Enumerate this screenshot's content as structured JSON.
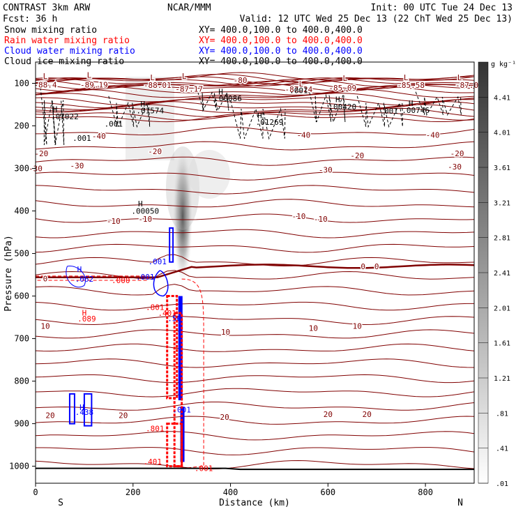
{
  "header": {
    "left_line1": "CONTRAST  3km ARW",
    "center_line1": "NCAR/MMM",
    "right_line1": "Init: 00 UTC Tue 24 Dec 13",
    "left_line2": "Fcst:    36 h",
    "right_line2": "Valid: 12 UTC Wed 25 Dec 13 (22 ChT Wed 25 Dec 13)",
    "xy_text": "XY= 400.0,100.0 to 400.0,400.0"
  },
  "legend": [
    {
      "label": "Snow mixing ratio",
      "color": "#000000"
    },
    {
      "label": "Rain water mixing ratio",
      "color": "#ff0000"
    },
    {
      "label": "Cloud water mixing ratio",
      "color": "#0000ff"
    },
    {
      "label": "Cloud ice mixing ratio",
      "color": "#000000"
    }
  ],
  "colors": {
    "temperature": "#800000",
    "rain": "#ff0000",
    "cloud_water": "#0000ff",
    "ice": "#000000",
    "frame": "#000000"
  },
  "chart_data": {
    "type": "cross-section contour",
    "xlabel": "Distance (km)",
    "ylabel": "Pressure (hPa)",
    "xlim": [
      0,
      900
    ],
    "ylim": [
      1040,
      50
    ],
    "x_ticks": [
      0,
      200,
      400,
      600,
      800
    ],
    "y_ticks": [
      100,
      200,
      300,
      400,
      500,
      600,
      700,
      800,
      900,
      1000
    ],
    "x_end_labels": {
      "left": "S",
      "right": "N"
    },
    "colorbar": {
      "unit": "g kg⁻¹",
      "ticks": [
        "4.41",
        "4.01",
        "3.61",
        "3.21",
        "2.81",
        "2.41",
        "2.01",
        "1.61",
        "1.21",
        ".81",
        ".41",
        ".01"
      ],
      "range": [
        0.01,
        4.81
      ]
    },
    "temperature_labels": [
      {
        "x": 420,
        "p": 93,
        "text": "-80"
      },
      {
        "x": 0,
        "p": 300,
        "text": "-30"
      },
      {
        "x": 85,
        "p": 293,
        "text": "-30"
      },
      {
        "x": 595,
        "p": 303,
        "text": "-30"
      },
      {
        "x": 860,
        "p": 296,
        "text": "-30"
      },
      {
        "x": 585,
        "p": 419,
        "text": "-10"
      },
      {
        "x": 12,
        "p": 265,
        "text": "-20"
      },
      {
        "x": 160,
        "p": 424,
        "text": "-10"
      },
      {
        "x": 245,
        "p": 260,
        "text": "-20"
      },
      {
        "x": 660,
        "p": 270,
        "text": "-20"
      },
      {
        "x": 865,
        "p": 265,
        "text": "-20"
      },
      {
        "x": 540,
        "p": 412,
        "text": "-10"
      },
      {
        "x": 225,
        "p": 419,
        "text": "-10"
      },
      {
        "x": 130,
        "p": 224,
        "text": "-40"
      },
      {
        "x": 550,
        "p": 221,
        "text": "-40"
      },
      {
        "x": 815,
        "p": 221,
        "text": "-40"
      },
      {
        "x": 20,
        "p": 559,
        "text": "0"
      },
      {
        "x": 672,
        "p": 530,
        "text": "0"
      },
      {
        "x": 700,
        "p": 530,
        "text": "0"
      },
      {
        "x": 20,
        "p": 670,
        "text": "10"
      },
      {
        "x": 390,
        "p": 684,
        "text": "10"
      },
      {
        "x": 570,
        "p": 675,
        "text": "10"
      },
      {
        "x": 660,
        "p": 670,
        "text": "10"
      },
      {
        "x": 30,
        "p": 880,
        "text": "20"
      },
      {
        "x": 180,
        "p": 880,
        "text": "20"
      },
      {
        "x": 388,
        "p": 884,
        "text": "20"
      },
      {
        "x": 600,
        "p": 878,
        "text": "20"
      },
      {
        "x": 680,
        "p": 878,
        "text": "20"
      }
    ],
    "low_labels": [
      {
        "x": 20,
        "p": 83,
        "text": "L"
      },
      {
        "x": 20,
        "p": 103,
        "text": "-88.4"
      },
      {
        "x": 110,
        "p": 80,
        "text": "L"
      },
      {
        "x": 120,
        "p": 103,
        "text": "-89.19"
      },
      {
        "x": 240,
        "p": 86,
        "text": "L"
      },
      {
        "x": 250,
        "p": 104,
        "text": "-88.01"
      },
      {
        "x": 305,
        "p": 83,
        "text": "L"
      },
      {
        "x": 315,
        "p": 113,
        "text": "-87.17"
      },
      {
        "x": 545,
        "p": 101,
        "text": "L"
      },
      {
        "x": 540,
        "p": 114,
        "text": "-87.24"
      },
      {
        "x": 635,
        "p": 88,
        "text": "L"
      },
      {
        "x": 630,
        "p": 111,
        "text": "-85.09"
      },
      {
        "x": 760,
        "p": 86,
        "text": "L"
      },
      {
        "x": 770,
        "p": 104,
        "text": "-85.58"
      },
      {
        "x": 870,
        "p": 86,
        "text": "L"
      },
      {
        "x": 885,
        "p": 104,
        "text": "-87.0"
      }
    ],
    "snow_high_labels": [
      {
        "x": 40,
        "p": 161,
        "text": "H"
      },
      {
        "x": 60,
        "p": 178,
        "text": ".01022"
      },
      {
        "x": 220,
        "p": 148,
        "text": "H"
      },
      {
        "x": 235,
        "p": 164,
        "text": ".01574"
      },
      {
        "x": 380,
        "p": 120,
        "text": "H"
      },
      {
        "x": 395,
        "p": 135,
        "text": ".00086"
      },
      {
        "x": 460,
        "p": 175,
        "text": "H"
      },
      {
        "x": 480,
        "p": 191,
        "text": ".01269"
      },
      {
        "x": 620,
        "p": 138,
        "text": "H"
      },
      {
        "x": 630,
        "p": 155,
        "text": ".00420"
      },
      {
        "x": 770,
        "p": 147,
        "text": "H"
      },
      {
        "x": 780,
        "p": 163,
        "text": ".00746"
      },
      {
        "x": 215,
        "p": 383,
        "text": "H"
      },
      {
        "x": 225,
        "p": 400,
        "text": ".00050"
      },
      {
        "x": 160,
        "p": 195,
        "text": ".001"
      },
      {
        "x": 95,
        "p": 229,
        "text": ".001"
      },
      {
        "x": 540,
        "p": 116,
        "text": ".001"
      },
      {
        "x": 725,
        "p": 165,
        "text": ".001"
      }
    ],
    "rain_labels": [
      {
        "x": 100,
        "p": 639,
        "text": "H"
      },
      {
        "x": 105,
        "p": 653,
        "text": ".089"
      },
      {
        "x": 175,
        "p": 563,
        "text": ".000"
      },
      {
        "x": 245,
        "p": 626,
        "text": ".801"
      },
      {
        "x": 270,
        "p": 640,
        "text": ".401"
      },
      {
        "x": 245,
        "p": 911,
        "text": ".801"
      },
      {
        "x": 240,
        "p": 989,
        "text": ".401"
      },
      {
        "x": 345,
        "p": 1005,
        "text": ".001"
      }
    ],
    "cloud_water_labels": [
      {
        "x": 90,
        "p": 537,
        "text": "H"
      },
      {
        "x": 100,
        "p": 560,
        "text": ".062"
      },
      {
        "x": 250,
        "p": 519,
        "text": ".001"
      },
      {
        "x": 225,
        "p": 555,
        "text": ".001"
      },
      {
        "x": 285,
        "p": 652,
        "text": ".56"
      },
      {
        "x": 300,
        "p": 867,
        "text": ".001"
      },
      {
        "x": 95,
        "p": 861,
        "text": "H"
      },
      {
        "x": 100,
        "p": 873,
        "text": ".438"
      }
    ]
  }
}
